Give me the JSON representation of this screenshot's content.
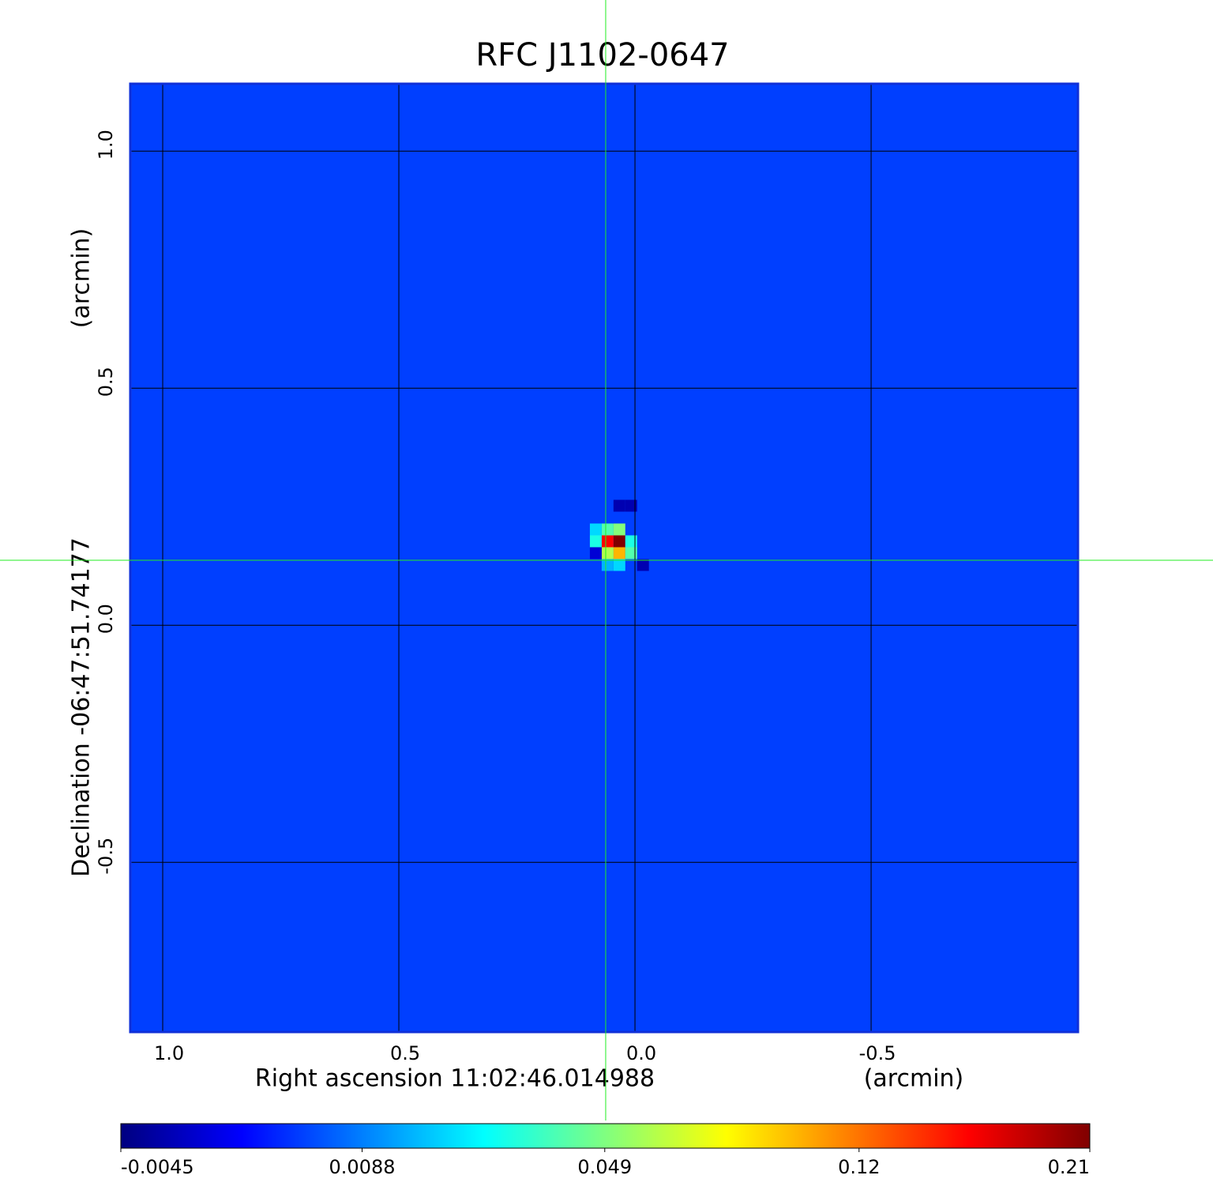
{
  "chart_data": {
    "type": "image",
    "title": "RFC J1102-0647",
    "title_color": "#1414d2",
    "x_label": "Right ascension  11:02:46.014988",
    "x_unit": "(arcmin)",
    "y_label": "Declination  -06:47:51.74177",
    "y_unit": "(arcmin)",
    "xlim": [
      1.0686,
      -0.938
    ],
    "ylim": [
      -0.858,
      1.142
    ],
    "xticks": [
      {
        "value": 1,
        "label": "1.0"
      },
      0.5,
      {
        "value": 0,
        "label": "0.0"
      },
      -0.5
    ],
    "yticks": [
      {
        "value": 1,
        "label": "1.0"
      },
      0.5,
      {
        "value": 0,
        "label": "0.0"
      },
      -0.5
    ],
    "grid": true,
    "frame_color": "#1030d8",
    "colormap": "jet",
    "colorbar_scale": "sqrt",
    "colorbar_lim": [
      -0.0045,
      0.21
    ],
    "colorbar_ticks": [
      -0.0045,
      0.0088,
      0.049,
      0.12,
      0.21
    ],
    "image": {
      "background_value": 0.003,
      "pixel_size": 0.025,
      "pixels": [
        [
          0.033,
          0.177,
          0.21
        ],
        [
          0.058,
          0.177,
          0.16
        ],
        [
          0.033,
          0.152,
          0.1
        ],
        [
          0.058,
          0.152,
          0.06
        ],
        [
          0.058,
          0.202,
          0.04
        ],
        [
          0.083,
          0.202,
          0.02
        ],
        [
          0.083,
          0.177,
          0.03
        ],
        [
          0.008,
          0.177,
          0.03
        ],
        [
          0.033,
          0.127,
          0.02
        ],
        [
          0.058,
          0.127,
          0.015
        ],
        [
          0.008,
          0.152,
          0.04
        ],
        [
          0.033,
          0.202,
          0.05
        ],
        [
          0.008,
          0.252,
          -0.004
        ],
        [
          0.033,
          0.252,
          -0.004
        ],
        [
          -0.017,
          0.127,
          -0.004
        ],
        [
          0.083,
          0.152,
          -0.003
        ]
      ]
    },
    "crosshair": {
      "x": 0.062,
      "y": 0.137,
      "color": "#22ee22"
    }
  }
}
